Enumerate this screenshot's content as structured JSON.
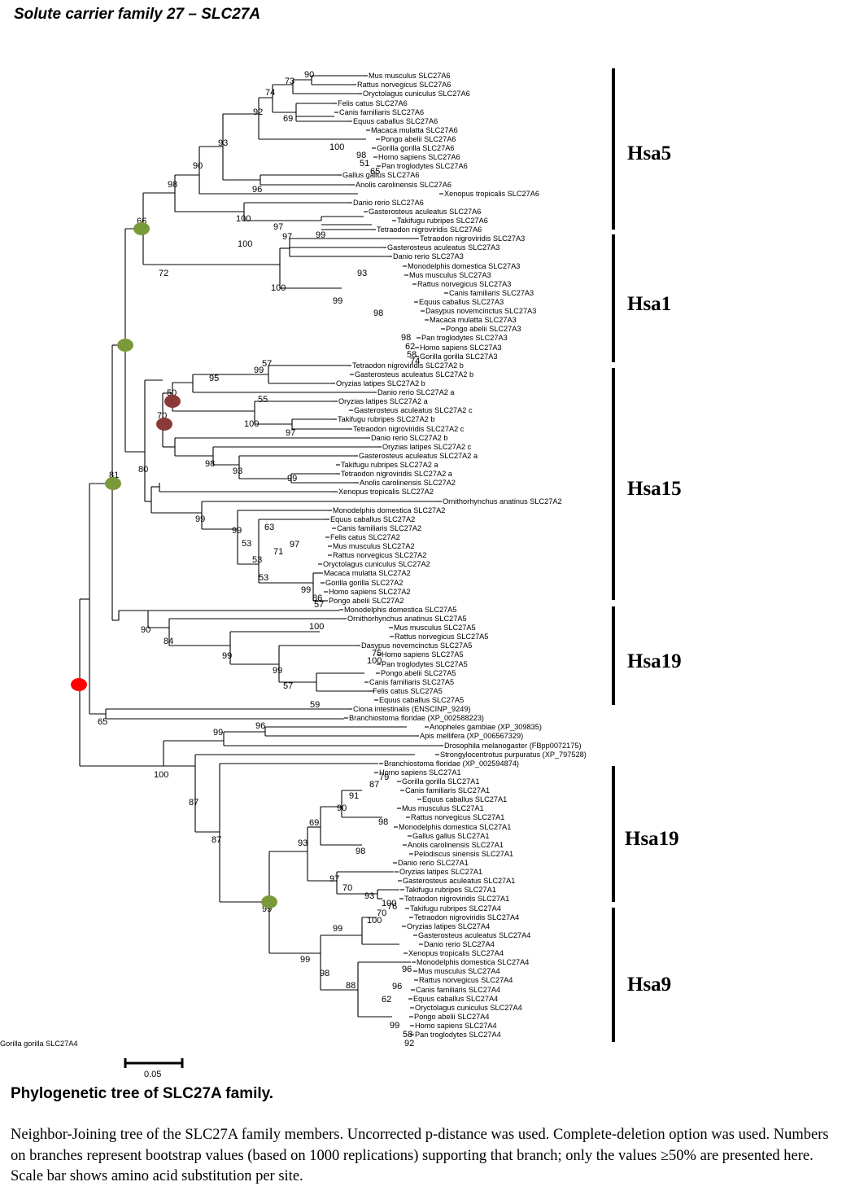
{
  "title": "Solute carrier family 27 – SLC27A",
  "caption": "Phylogenetic tree of SLC27A family.",
  "description": "Neighbor-Joining tree of the SLC27A family members. Uncorrected p-distance was used. Complete-deletion option was used. Numbers on branches represent bootstrap values (based on 1000 replications) supporting that branch; only the values ≥50% are presented here. Scale bar shows amino acid substitution per site.",
  "scale_label": "0.05",
  "colors": {
    "duplication_green": "#7a9a3a",
    "duplication_darkred": "#8b3a3a",
    "root_red": "#ff0000"
  },
  "leaves": [
    "Mus musculus SLC27A6",
    "Rattus norvegicus SLC27A6",
    "Oryctolagus cuniculus SLC27A6",
    "Felis catus SLC27A6",
    "Canis familiaris SLC27A6",
    "Equus caballus SLC27A6",
    "Macaca mulatta SLC27A6",
    "Pongo abelii SLC27A6",
    "Gorilla gorilla SLC27A6",
    "Homo sapiens SLC27A6",
    "Pan troglodytes SLC27A6",
    "Gallus gallus SLC27A6",
    "Anolis carolinensis SLC27A6",
    "Xenopus tropicalis SLC27A6",
    "Danio rerio SLC27A6",
    "Gasterosteus aculeatus SLC27A6",
    "Takifugu rubripes SLC27A6",
    "Tetraodon nigroviridis SLC27A6",
    "Tetraodon nigroviridis SLC27A3",
    "Gasterosteus aculeatus SLC27A3",
    "Danio rerio SLC27A3",
    "Monodelphis domestica SLC27A3",
    "Mus musculus SLC27A3",
    "Rattus norvegicus SLC27A3",
    "Canis familiaris SLC27A3",
    "Equus caballus SLC27A3",
    "Dasypus novemcinctus SLC27A3",
    "Macaca mulatta SLC27A3",
    "Pongo abelii SLC27A3",
    "Pan troglodytes SLC27A3",
    "Homo sapiens SLC27A3",
    "Gorilla gorilla SLC27A3",
    "Tetraodon nigroviridis SLC27A2 b",
    "Gasterosteus aculeatus SLC27A2 b",
    "Oryzias latipes SLC27A2 b",
    "Danio rerio SLC27A2 a",
    "Oryzias latipes SLC27A2 a",
    "Gasterosteus aculeatus SLC27A2 c",
    "Takifugu rubripes SLC27A2 b",
    "Tetraodon nigroviridis SLC27A2 c",
    "Danio rerio SLC27A2 b",
    "Oryzias latipes SLC27A2 c",
    "Gasterosteus aculeatus SLC27A2 a",
    "Takifugu rubripes SLC27A2 a",
    "Tetraodon nigroviridis SLC27A2 a",
    "Anolis carolinensis SLC27A2",
    "Xenopus tropicalis SLC27A2",
    "Ornithorhynchus anatinus SLC27A2",
    "Monodelphis domestica SLC27A2",
    "Equus caballus SLC27A2",
    "Canis familiaris SLC27A2",
    "Felis catus SLC27A2",
    "Mus musculus SLC27A2",
    "Rattus norvegicus SLC27A2",
    "Oryctolagus cuniculus SLC27A2",
    "Macaca mulatta SLC27A2",
    "Gorilla gorilla SLC27A2",
    "Homo sapiens SLC27A2",
    "Pongo abelii SLC27A2",
    "Monodelphis domestica SLC27A5",
    "Ornithorhynchus anatinus SLC27A5",
    "Mus musculus SLC27A5",
    "Rattus norvegicus SLC27A5",
    "Dasypus novemcinctus SLC27A5",
    "Homo sapiens SLC27A5",
    "Pan troglodytes SLC27A5",
    "Pongo abelii SLC27A5",
    "Canis familiaris SLC27A5",
    "Felis catus SLC27A5",
    "Equus caballus SLC27A5",
    "Ciona intestinalis (ENSCINP_9249)",
    "Branchiostoma floridae (XP_002588223)",
    "Anopheles gambiae (XP_309835)",
    "Apis mellifera (XP_006567329)",
    "Drosophila melanogaster (FBpp0072175)",
    "Strongylocentrotus purpuratus (XP_797528)",
    "Branchiostoma floridae (XP_002594874)",
    "Homo sapiens SLC27A1",
    "Gorilla gorilla SLC27A1",
    "Canis familiaris SLC27A1",
    "Equus caballus SLC27A1",
    "Mus musculus SLC27A1",
    "Rattus norvegicus SLC27A1",
    "Monodelphis domestica SLC27A1",
    "Gallus gallus SLC27A1",
    "Anolis carolinensis SLC27A1",
    "Pelodiscus sinensis SLC27A1",
    "Danio rerio SLC27A1",
    "Oryzias latipes SLC27A1",
    "Gasterosteus aculeatus SLC27A1",
    "Takifugu rubripes SLC27A1",
    "Tetraodon nigroviridis SLC27A1",
    "Takifugu rubripes SLC27A4",
    "Tetraodon nigroviridis SLC27A4",
    "Oryzias latipes SLC27A4",
    "Gasterosteus aculeatus SLC27A4",
    "Danio rerio SLC27A4",
    "Xenopus tropicalis SLC27A4",
    "Monodelphis domestica SLC27A4",
    "Mus musculus SLC27A4",
    "Rattus norvegicus SLC27A4",
    "Canis familiaris SLC27A4",
    "Equus caballus SLC27A4",
    "Oryctolagus cuniculus SLC27A4",
    "Pongo abelii SLC27A4",
    "Homo sapiens SLC27A4",
    "Pan troglodytes SLC27A4",
    "Gorilla gorilla SLC27A4"
  ],
  "bootstrap_values": [
    "90",
    "73",
    "74",
    "92",
    "69",
    "93",
    "100",
    "98",
    "51",
    "65",
    "90",
    "96",
    "98",
    "100",
    "97",
    "99",
    "66",
    "97",
    "100",
    "72",
    "93",
    "100",
    "99",
    "98",
    "98",
    "62",
    "58",
    "74",
    "57",
    "99",
    "95",
    "50",
    "55",
    "70",
    "100",
    "97",
    "98",
    "93",
    "99",
    "80",
    "81",
    "99",
    "63",
    "99",
    "53",
    "97",
    "71",
    "53",
    "53",
    "99",
    "86",
    "57",
    "90",
    "100",
    "84",
    "75",
    "100",
    "99",
    "99",
    "57",
    "59",
    "65",
    "96",
    "99",
    "100",
    "87",
    "87",
    "99",
    "79",
    "87",
    "91",
    "90",
    "69",
    "98",
    "93",
    "98",
    "97",
    "70",
    "93",
    "100",
    "76",
    "70",
    "100",
    "99",
    "99",
    "96",
    "98",
    "88",
    "96",
    "62",
    "99",
    "58",
    "92",
    "69"
  ],
  "clades": [
    "Hsa5",
    "Hsa1",
    "Hsa15",
    "Hsa19",
    "Hsa19",
    "Hsa9"
  ]
}
